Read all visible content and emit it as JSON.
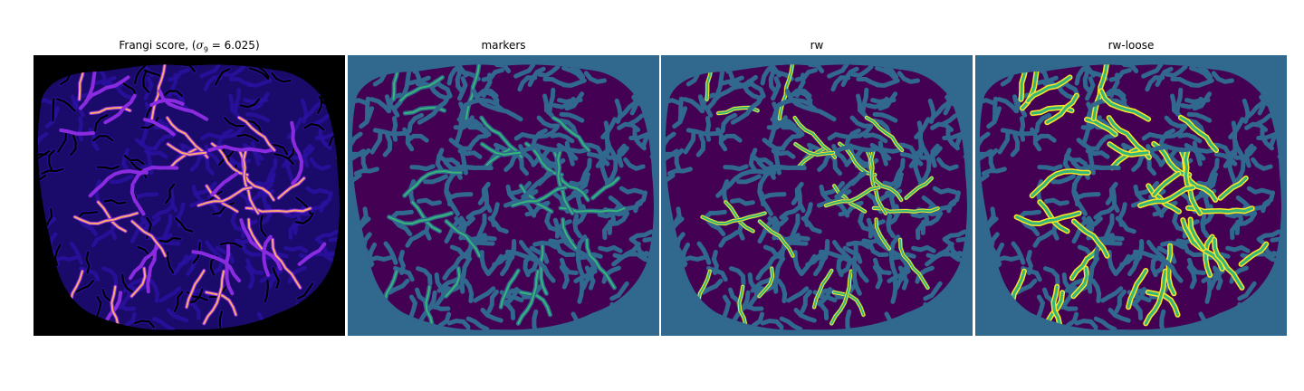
{
  "panels": [
    {
      "id": "frangi",
      "title": "Frangi score, (σ₉ = 6.025)",
      "colormap": "magma",
      "colors": {
        "background": "#000000",
        "base": "#2a10a0",
        "vessel_dim": "#8a2be2",
        "vessel_bright": "#fcaa6c"
      }
    },
    {
      "id": "markers",
      "title": "markers",
      "colormap": "viridis",
      "colors": {
        "background": "#31688e",
        "tissue": "#440154",
        "label": "#35b779"
      }
    },
    {
      "id": "rw",
      "title": "rw",
      "colormap": "viridis",
      "colors": {
        "background": "#31688e",
        "tissue": "#440154",
        "label": "#35b779",
        "edge": "#fde725"
      }
    },
    {
      "id": "rw-loose",
      "title": "rw-loose",
      "colormap": "viridis",
      "colors": {
        "background": "#31688e",
        "tissue": "#440154",
        "label": "#35b779",
        "edge": "#fde725"
      }
    }
  ]
}
